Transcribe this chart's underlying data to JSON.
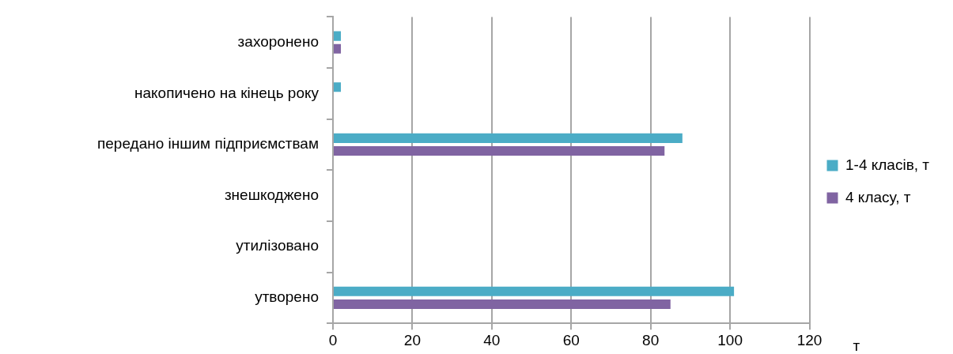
{
  "chart_data": {
    "type": "bar",
    "orientation": "horizontal",
    "xlabel": "т",
    "categories": [
      "захоронено",
      "накопичено на кінець року",
      "передано іншим підприємствам",
      "знешкоджено",
      "утилізовано",
      "утворено"
    ],
    "series": [
      {
        "name": "1-4 класів, т",
        "color": "#4bacc6",
        "values": [
          2,
          2,
          88,
          0,
          0,
          101
        ]
      },
      {
        "name": "4 класу, т",
        "color": "#8064a2",
        "values": [
          2,
          0,
          83.5,
          0,
          0,
          85
        ]
      }
    ],
    "xlim": [
      0,
      120
    ],
    "xticks": [
      0,
      20,
      40,
      60,
      80,
      100,
      120
    ],
    "grid": "x",
    "legend": "right"
  }
}
